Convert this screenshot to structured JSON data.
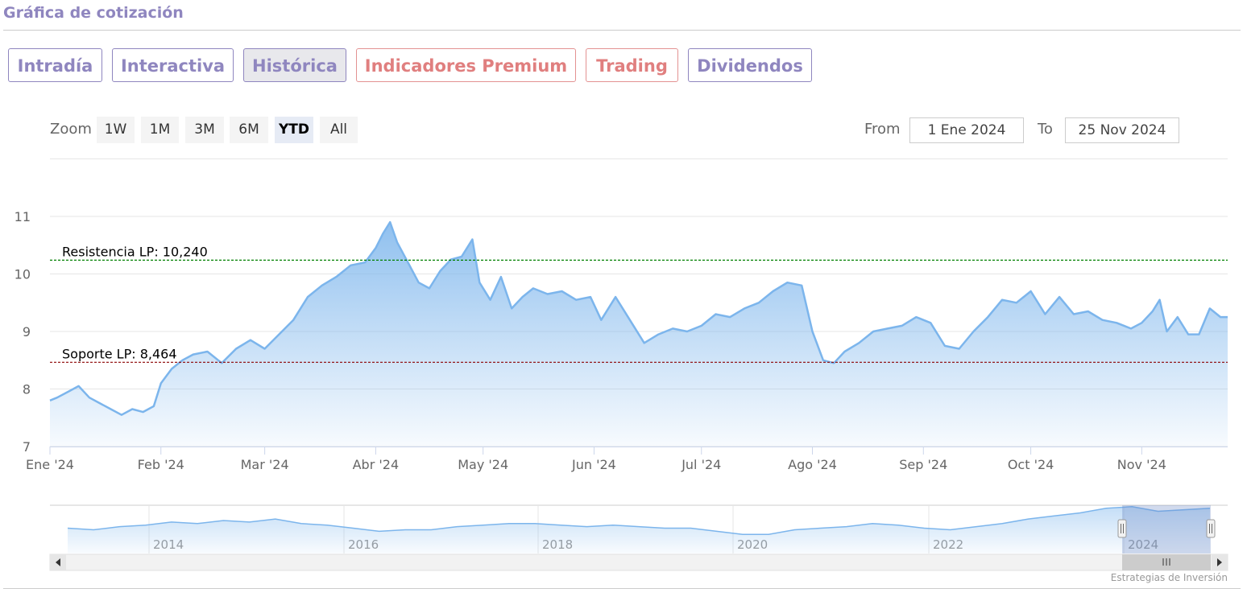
{
  "page_title": "Gráfica de cotización",
  "tabs": [
    {
      "label": "Intradía",
      "active": false,
      "premium": false
    },
    {
      "label": "Interactiva",
      "active": false,
      "premium": false
    },
    {
      "label": "Histórica",
      "active": true,
      "premium": false
    },
    {
      "label": "Indicadores Premium",
      "active": false,
      "premium": true
    },
    {
      "label": "Trading",
      "active": false,
      "premium": true
    },
    {
      "label": "Dividendos",
      "active": false,
      "premium": false
    }
  ],
  "range_selector": {
    "zoom_label": "Zoom",
    "buttons": [
      "1W",
      "1M",
      "3M",
      "6M",
      "YTD",
      "All"
    ],
    "selected": "YTD",
    "from_label": "From",
    "from_value": "1 Ene 2024",
    "to_label": "To",
    "to_value": "25 Nov 2024"
  },
  "credits": "Estrategias de Inversión",
  "colors": {
    "accent": "#8f86bf",
    "premium": "#e07f7f",
    "series_line": "#7cb5ec",
    "resistance": "#008000",
    "support": "#8b0000"
  },
  "chart_data": {
    "type": "area",
    "x_ticks": [
      "Ene '24",
      "Feb '24",
      "Mar '24",
      "Abr '24",
      "May '24",
      "Jun '24",
      "Jul '24",
      "Ago '24",
      "Sep '24",
      "Oct '24",
      "Nov '24"
    ],
    "y_ticks": [
      7,
      8,
      9,
      10,
      11
    ],
    "ylim": [
      7,
      11
    ],
    "xlim": [
      "2024-01-01",
      "2024-11-25"
    ],
    "grid": true,
    "x": [
      "2024-01-01",
      "2024-01-03",
      "2024-01-06",
      "2024-01-09",
      "2024-01-12",
      "2024-01-15",
      "2024-01-18",
      "2024-01-21",
      "2024-01-24",
      "2024-01-27",
      "2024-01-30",
      "2024-02-01",
      "2024-02-04",
      "2024-02-07",
      "2024-02-10",
      "2024-02-14",
      "2024-02-18",
      "2024-02-22",
      "2024-02-26",
      "2024-03-01",
      "2024-03-05",
      "2024-03-09",
      "2024-03-13",
      "2024-03-17",
      "2024-03-21",
      "2024-03-25",
      "2024-03-29",
      "2024-04-01",
      "2024-04-03",
      "2024-04-05",
      "2024-04-07",
      "2024-04-10",
      "2024-04-13",
      "2024-04-16",
      "2024-04-19",
      "2024-04-22",
      "2024-04-25",
      "2024-04-28",
      "2024-04-30",
      "2024-05-03",
      "2024-05-06",
      "2024-05-09",
      "2024-05-12",
      "2024-05-15",
      "2024-05-19",
      "2024-05-23",
      "2024-05-27",
      "2024-05-31",
      "2024-06-03",
      "2024-06-07",
      "2024-06-11",
      "2024-06-15",
      "2024-06-19",
      "2024-06-23",
      "2024-06-27",
      "2024-07-01",
      "2024-07-05",
      "2024-07-09",
      "2024-07-13",
      "2024-07-17",
      "2024-07-21",
      "2024-07-25",
      "2024-07-29",
      "2024-08-01",
      "2024-08-04",
      "2024-08-07",
      "2024-08-10",
      "2024-08-14",
      "2024-08-18",
      "2024-08-22",
      "2024-08-26",
      "2024-08-30",
      "2024-09-03",
      "2024-09-07",
      "2024-09-11",
      "2024-09-15",
      "2024-09-19",
      "2024-09-23",
      "2024-09-27",
      "2024-10-01",
      "2024-10-05",
      "2024-10-09",
      "2024-10-13",
      "2024-10-17",
      "2024-10-21",
      "2024-10-25",
      "2024-10-29",
      "2024-11-01",
      "2024-11-04",
      "2024-11-06",
      "2024-11-08",
      "2024-11-11",
      "2024-11-14",
      "2024-11-17",
      "2024-11-20",
      "2024-11-23",
      "2024-11-25"
    ],
    "series": [
      {
        "values": [
          7.8,
          7.85,
          7.95,
          8.05,
          7.85,
          7.75,
          7.65,
          7.55,
          7.65,
          7.6,
          7.7,
          8.1,
          8.35,
          8.5,
          8.6,
          8.65,
          8.45,
          8.7,
          8.85,
          8.7,
          8.95,
          9.2,
          9.6,
          9.8,
          9.95,
          10.15,
          10.2,
          10.45,
          10.7,
          10.9,
          10.55,
          10.2,
          9.85,
          9.75,
          10.05,
          10.25,
          10.3,
          10.6,
          9.85,
          9.55,
          9.95,
          9.4,
          9.6,
          9.75,
          9.65,
          9.7,
          9.55,
          9.6,
          9.2,
          9.6,
          9.2,
          8.8,
          8.95,
          9.05,
          9.0,
          9.1,
          9.3,
          9.25,
          9.4,
          9.5,
          9.7,
          9.85,
          9.8,
          9.0,
          8.5,
          8.45,
          8.65,
          8.8,
          9.0,
          9.05,
          9.1,
          9.25,
          9.15,
          8.75,
          8.7,
          9.0,
          9.25,
          9.55,
          9.5,
          9.7,
          9.3,
          9.6,
          9.3,
          9.35,
          9.2,
          9.15,
          9.05,
          9.15,
          9.35,
          9.55,
          9.0,
          9.25,
          8.95,
          8.95,
          9.4,
          9.25,
          9.25
        ]
      }
    ],
    "plot_lines": [
      {
        "label": "Resistencia LP: 10,240",
        "value": 10.24,
        "color": "#008000"
      },
      {
        "label": "Soporte LP: 8,464",
        "value": 8.464,
        "color": "#8b0000"
      }
    ]
  },
  "navigator": {
    "x_ticks": [
      "2014",
      "2016",
      "2018",
      "2020",
      "2022",
      "2024"
    ],
    "selected_range": [
      "2024-01-01",
      "2024-11-25"
    ],
    "series_values": [
      8.6,
      8.5,
      8.7,
      8.8,
      9.0,
      8.9,
      9.1,
      9.0,
      9.2,
      8.9,
      8.8,
      8.6,
      8.4,
      8.5,
      8.5,
      8.7,
      8.8,
      8.9,
      8.9,
      8.8,
      8.7,
      8.8,
      8.7,
      8.6,
      8.6,
      8.4,
      8.2,
      8.2,
      8.5,
      8.6,
      8.7,
      8.9,
      8.8,
      8.6,
      8.5,
      8.7,
      8.9,
      9.2,
      9.4,
      9.6,
      9.9,
      10.0,
      9.7,
      9.8,
      9.9
    ]
  }
}
